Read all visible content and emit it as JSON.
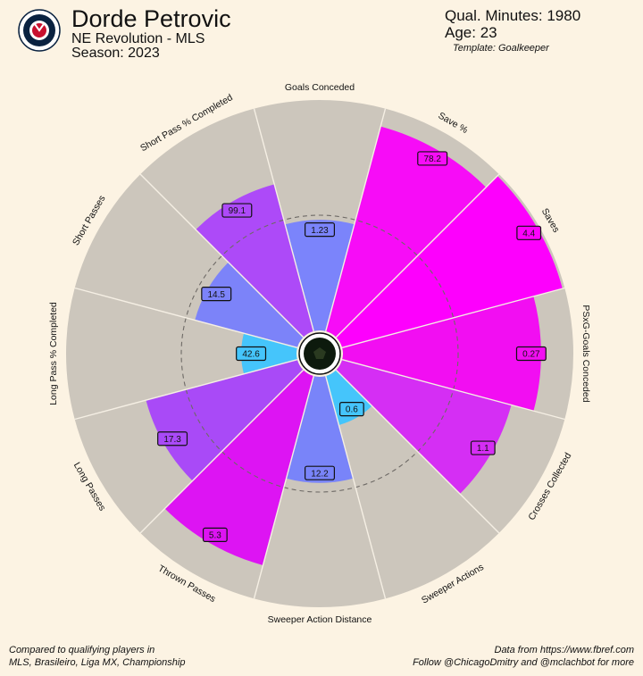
{
  "header": {
    "player": "Dorde Petrovic",
    "team": "NE Revolution - MLS",
    "season": "Season: 2023",
    "minutes": "Qual. Minutes: 1980",
    "age": "Age: 23",
    "template": "Template: Goalkeeper",
    "logo_text": "NEW ENGLAND REVOLUTION"
  },
  "footer": {
    "left_line1": "Compared to qualifying players in",
    "left_line2": "MLS, Brasileiro, Liga MX, Championship",
    "right_line1": "Data from https://www.fbref.com",
    "right_line2": "Follow @ChicagoDmitry and @mclachbot for more"
  },
  "colors": {
    "background": "#fcf3e3",
    "slice_background": "#ccc6bc",
    "separator": "#f5efe4"
  },
  "chart_data": {
    "type": "pizza",
    "max_value": 100,
    "reference_percentile": 50,
    "categories": [
      {
        "label": "Goals Conceded",
        "value": "1.23",
        "percentile": 48,
        "color": "#7b84fb"
      },
      {
        "label": "Save %",
        "value": "78.2",
        "percentile": 92,
        "color": "#f70cf7"
      },
      {
        "label": "Saves",
        "value": "4.4",
        "percentile": 99,
        "color": "#fd00fd"
      },
      {
        "label": "PSxG-Goals Conceded",
        "value": "0.27",
        "percentile": 86,
        "color": "#f20ef2"
      },
      {
        "label": "Crosses Collected",
        "value": "1.1",
        "percentile": 76,
        "color": "#d52ef4"
      },
      {
        "label": "Sweeper Actions",
        "value": "0.6",
        "percentile": 22,
        "color": "#45c5fb"
      },
      {
        "label": "Sweeper Action Distance",
        "value": "12.2",
        "percentile": 46,
        "color": "#7984f9"
      },
      {
        "label": "Thrown Passes",
        "value": "5.3",
        "percentile": 85,
        "color": "#dd14f3"
      },
      {
        "label": "Long Passes",
        "value": "17.3",
        "percentile": 68,
        "color": "#a94af7"
      },
      {
        "label": "Long Pass % Completed",
        "value": "42.6",
        "percentile": 24,
        "color": "#45c5fb"
      },
      {
        "label": "Short Passes",
        "value": "14.5",
        "percentile": 46,
        "color": "#7c83f9"
      },
      {
        "label": "Short Pass % Completed",
        "value": "99.1",
        "percentile": 66,
        "color": "#ad4af8"
      }
    ]
  }
}
